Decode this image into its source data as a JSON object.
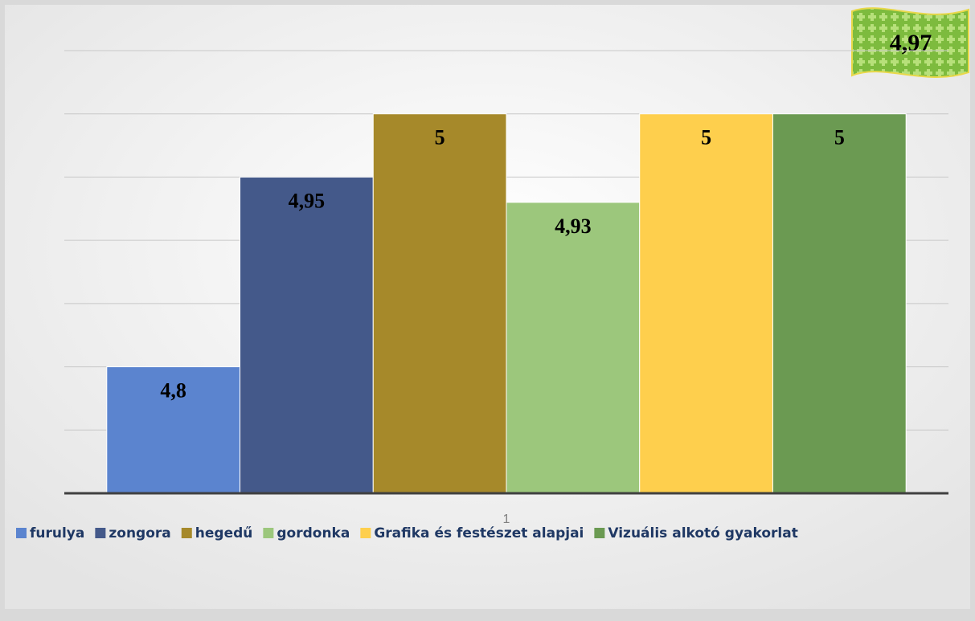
{
  "chart_data": {
    "type": "bar",
    "categories": [
      "1"
    ],
    "series": [
      {
        "name": "furulya",
        "color": "#5b84cf",
        "values": [
          4.8
        ],
        "value_labels": [
          "4,8"
        ]
      },
      {
        "name": "zongora",
        "color": "#44598a",
        "values": [
          4.95
        ],
        "value_labels": [
          "4,95"
        ]
      },
      {
        "name": "hegedű",
        "color": "#a6892a",
        "values": [
          5
        ],
        "value_labels": [
          "5"
        ]
      },
      {
        "name": "gordonka",
        "color": "#9cc77c",
        "values": [
          4.93
        ],
        "value_labels": [
          "4,93"
        ]
      },
      {
        "name": "Grafika és festészet alapjai",
        "color": "#fecf4d",
        "values": [
          5
        ],
        "value_labels": [
          "5"
        ]
      },
      {
        "name": "Vizuális alkotó gyakorlat",
        "color": "#6b9a52",
        "values": [
          5
        ],
        "value_labels": [
          "5"
        ]
      }
    ],
    "ylim": [
      4.7,
      5.05
    ],
    "yticks": [
      4.7,
      4.75,
      4.8,
      4.85,
      4.9,
      4.95,
      5,
      5.05
    ],
    "grid": true,
    "legend": "bottom",
    "annotation": "4,97"
  }
}
